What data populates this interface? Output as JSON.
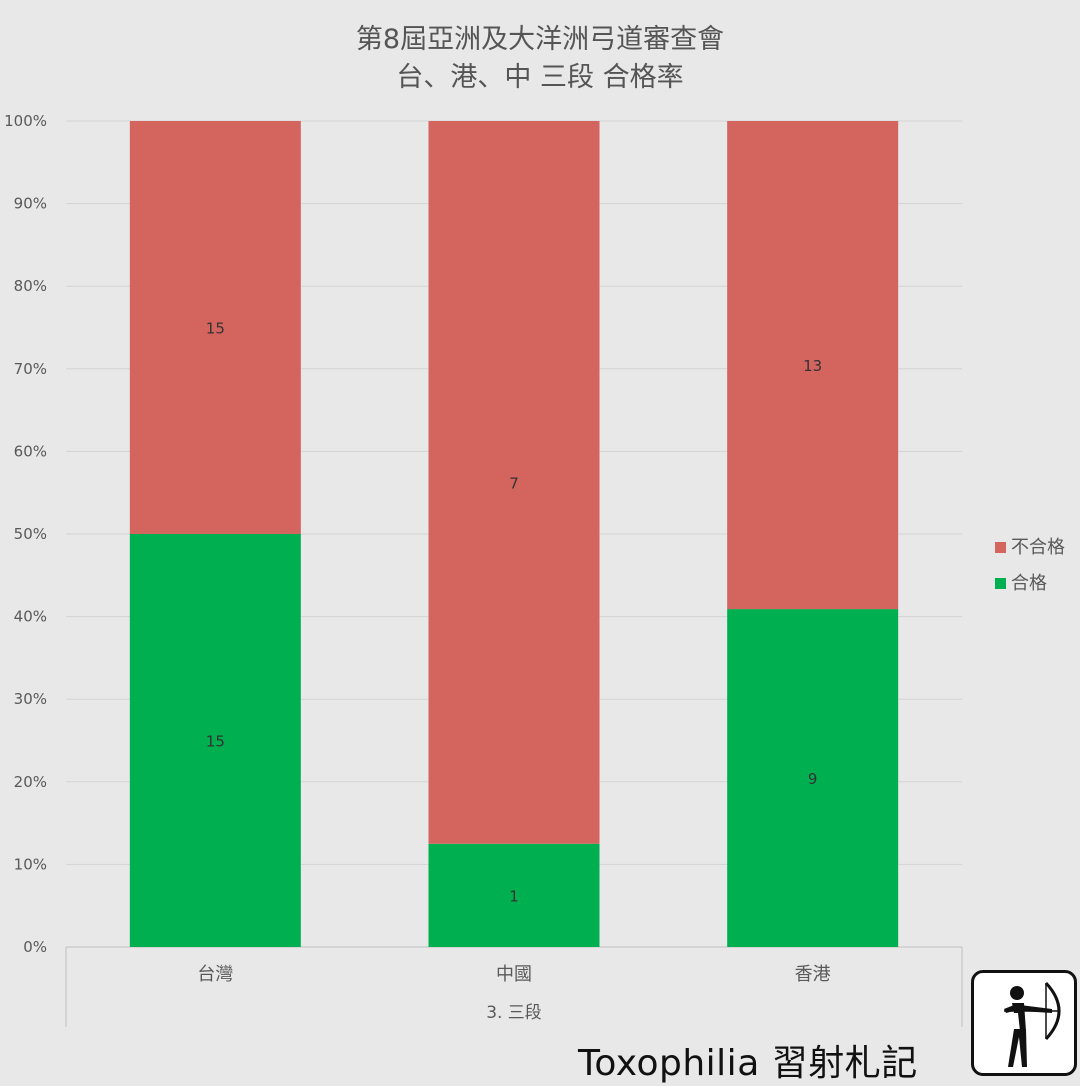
{
  "chart_data": {
    "type": "bar",
    "stacked": true,
    "normalized_percent": true,
    "title": [
      "第8屆亞洲及大洋洲弓道審查會",
      "台、港、中 三段 合格率"
    ],
    "categories": [
      "台灣",
      "中國",
      "香港"
    ],
    "group_label": "3. 三段",
    "series": [
      {
        "name": "合格",
        "values": [
          15,
          1,
          9
        ]
      },
      {
        "name": "不合格",
        "values": [
          15,
          7,
          13
        ]
      }
    ],
    "colors": {
      "合格": "#00b050",
      "不合格": "#d4655e"
    },
    "y_ticks": [
      "0%",
      "10%",
      "20%",
      "30%",
      "40%",
      "50%",
      "60%",
      "70%",
      "80%",
      "90%",
      "100%"
    ],
    "ylim": [
      0,
      100
    ],
    "grid": true,
    "legend_position": "right",
    "legend_order": [
      "不合格",
      "合格"
    ]
  },
  "branding": {
    "text": "Toxophilia 習射札記",
    "logo_icon": "archer-icon"
  }
}
